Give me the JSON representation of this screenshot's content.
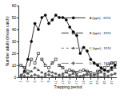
{
  "chart_data": {
    "type": "line",
    "x_label": "Trapping period",
    "y_label": "Number adults (mean catch)",
    "categories": [
      "1",
      null,
      "3",
      null,
      "5",
      null,
      "7",
      null,
      "9",
      null,
      "11",
      null,
      "13",
      null,
      "15",
      null,
      "17",
      null,
      "19",
      null,
      "21",
      null,
      "23",
      null,
      "25",
      null,
      "27",
      null
    ],
    "series": [
      {
        "name": "A (type) - 1974",
        "color": "#000000",
        "marker": "circle",
        "line_style": "solid",
        "values": [
          0,
          5,
          15,
          30,
          45,
          40,
          50,
          52,
          45,
          48,
          52,
          50,
          50,
          48,
          42,
          38,
          35,
          20,
          25,
          22,
          15,
          12,
          10,
          8,
          6,
          5,
          8,
          10
        ]
      },
      {
        "name": "B (type) - 1974",
        "color": "#000000",
        "marker": "square-open",
        "line_style": "dash",
        "values": [
          10,
          8,
          5,
          15,
          12,
          20,
          15,
          10,
          8,
          12,
          15,
          10,
          8,
          5,
          6,
          5,
          4,
          5,
          6,
          5,
          4,
          3,
          5,
          6,
          8,
          10,
          12,
          12
        ]
      },
      {
        "name": "C (type) - 1974",
        "color": "#444444",
        "marker": "triangle-up",
        "line_style": "dot",
        "values": [
          2,
          4,
          3,
          5,
          8,
          6,
          4,
          3,
          5,
          4,
          3,
          2,
          3,
          4,
          2,
          3,
          2,
          1,
          2,
          3,
          2,
          2,
          3,
          4,
          3,
          5,
          6,
          8
        ]
      },
      {
        "name": "D (type) - 1974",
        "color": "#666666",
        "marker": "diamond",
        "line_style": "dashdot",
        "values": [
          0,
          1,
          0,
          1,
          2,
          1,
          0,
          1,
          2,
          1,
          0,
          1,
          1,
          0,
          1,
          0,
          1,
          0,
          1,
          2,
          1,
          0,
          1,
          0,
          1,
          1,
          2,
          3
        ]
      }
    ],
    "ylim": [
      0,
      60
    ],
    "yticks": [
      0,
      10,
      20,
      30,
      40,
      50,
      60
    ],
    "grid": false,
    "legend": "top-right"
  }
}
